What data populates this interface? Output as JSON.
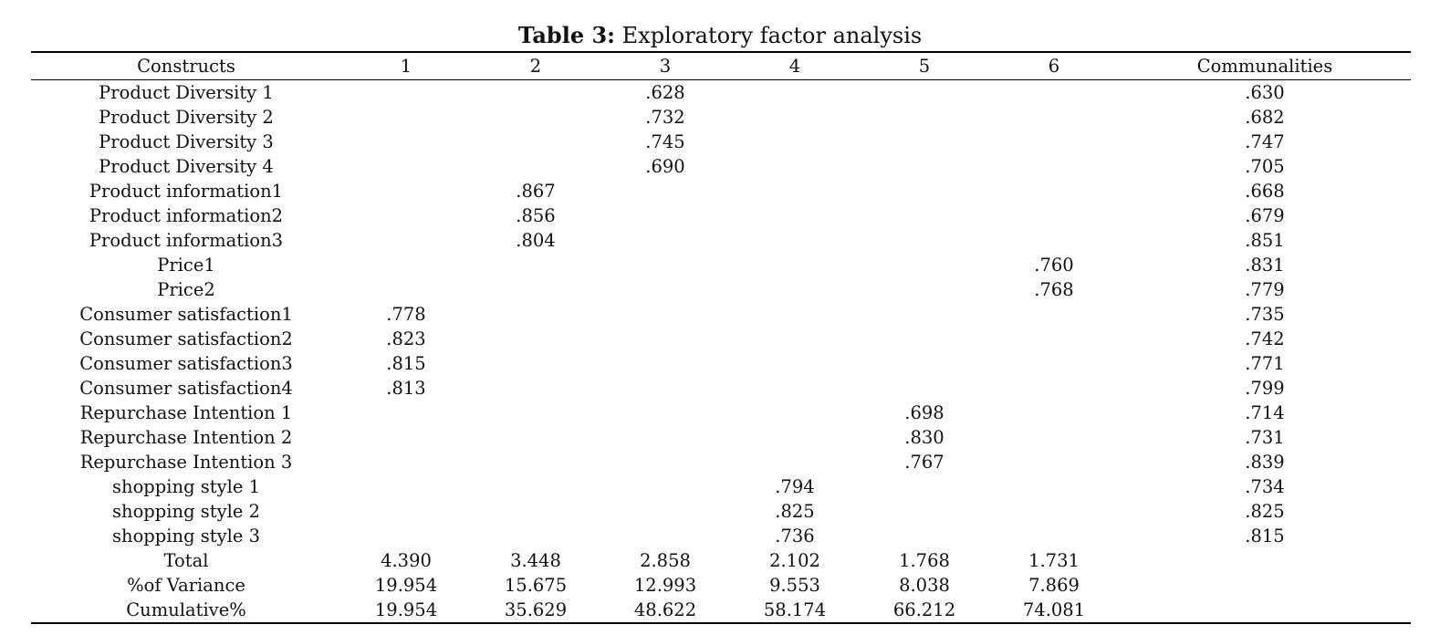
{
  "caption": {
    "label": "Table 3:",
    "text": "Exploratory factor analysis"
  },
  "table": {
    "headers": [
      "Constructs",
      "1",
      "2",
      "3",
      "4",
      "5",
      "6",
      "Communalities"
    ],
    "rows": [
      [
        "Product Diversity 1",
        "",
        "",
        ".628",
        "",
        "",
        "",
        ".630"
      ],
      [
        "Product Diversity 2",
        "",
        "",
        ".732",
        "",
        "",
        "",
        ".682"
      ],
      [
        "Product Diversity 3",
        "",
        "",
        ".745",
        "",
        "",
        "",
        ".747"
      ],
      [
        "Product Diversity 4",
        "",
        "",
        ".690",
        "",
        "",
        "",
        ".705"
      ],
      [
        "Product information1",
        "",
        ".867",
        "",
        "",
        "",
        "",
        ".668"
      ],
      [
        "Product information2",
        "",
        ".856",
        "",
        "",
        "",
        "",
        ".679"
      ],
      [
        "Product information3",
        "",
        ".804",
        "",
        "",
        "",
        "",
        ".851"
      ],
      [
        "Price1",
        "",
        "",
        "",
        "",
        "",
        ".760",
        ".831"
      ],
      [
        "Price2",
        "",
        "",
        "",
        "",
        "",
        ".768",
        ".779"
      ],
      [
        "Consumer satisfaction1",
        ".778",
        "",
        "",
        "",
        "",
        "",
        ".735"
      ],
      [
        "Consumer satisfaction2",
        ".823",
        "",
        "",
        "",
        "",
        "",
        ".742"
      ],
      [
        "Consumer satisfaction3",
        ".815",
        "",
        "",
        "",
        "",
        "",
        ".771"
      ],
      [
        "Consumer satisfaction4",
        ".813",
        "",
        "",
        "",
        "",
        "",
        ".799"
      ],
      [
        "Repurchase Intention 1",
        "",
        "",
        "",
        "",
        ".698",
        "",
        ".714"
      ],
      [
        "Repurchase Intention 2",
        "",
        "",
        "",
        "",
        ".830",
        "",
        ".731"
      ],
      [
        "Repurchase Intention 3",
        "",
        "",
        "",
        "",
        ".767",
        "",
        ".839"
      ],
      [
        "shopping style 1",
        "",
        "",
        "",
        ".794",
        "",
        "",
        ".734"
      ],
      [
        "shopping style 2",
        "",
        "",
        "",
        ".825",
        "",
        "",
        ".825"
      ],
      [
        "shopping style 3",
        "",
        "",
        "",
        ".736",
        "",
        "",
        ".815"
      ],
      [
        "Total",
        "4.390",
        "3.448",
        "2.858",
        "2.102",
        "1.768",
        "1.731",
        ""
      ],
      [
        "%of Variance",
        "19.954",
        "15.675",
        "12.993",
        "9.553",
        "8.038",
        "7.869",
        ""
      ],
      [
        "Cumulative%",
        "19.954",
        "35.629",
        "48.622",
        "58.174",
        "66.212",
        "74.081",
        ""
      ]
    ]
  }
}
